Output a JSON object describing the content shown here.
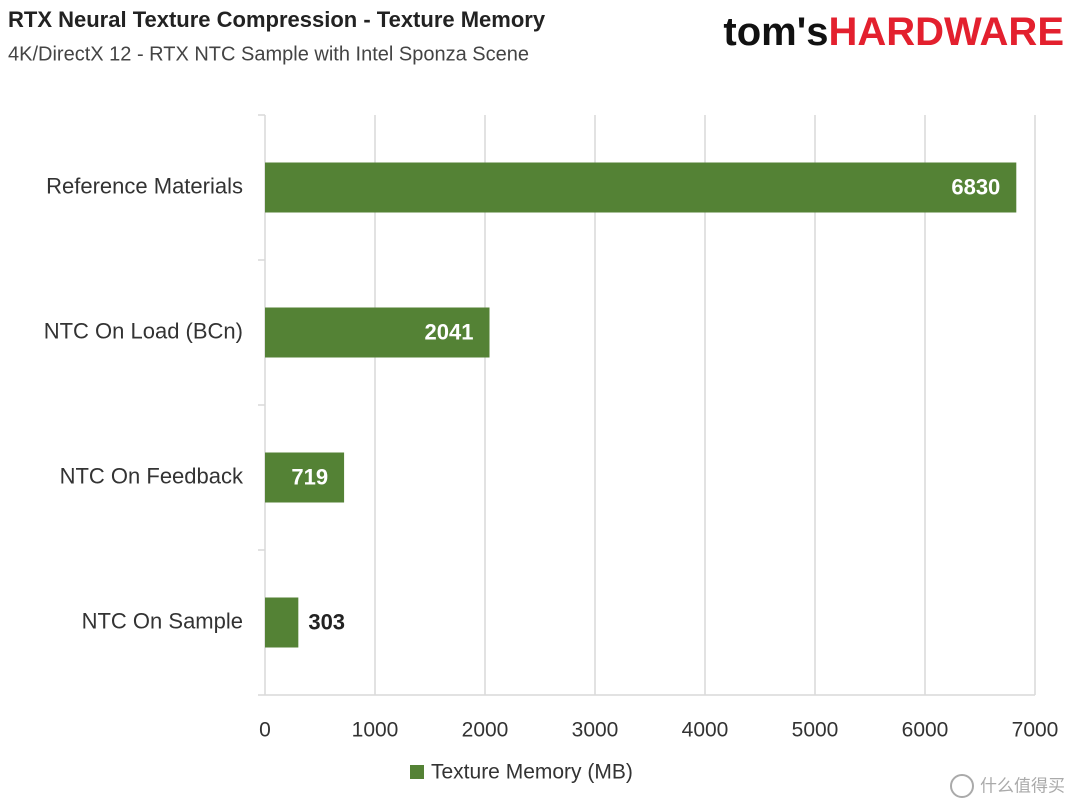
{
  "chart_data": {
    "type": "bar",
    "orientation": "horizontal",
    "title": "RTX Neural Texture Compression - Texture Memory",
    "subtitle": "4K/DirectX 12 - RTX NTC Sample with Intel Sponza Scene",
    "brand": {
      "prefix": "tom's",
      "name": "HARDWARE"
    },
    "watermark": "什么值得买",
    "categories": [
      "Reference Materials",
      "NTC On Load (BCn)",
      "NTC On Feedback",
      "NTC On Sample"
    ],
    "series": [
      {
        "name": "Texture Memory (MB)",
        "color": "#548235",
        "values": [
          6830,
          2041,
          719,
          303
        ]
      }
    ],
    "xlim": [
      0,
      7000
    ],
    "xticks": [
      0,
      1000,
      2000,
      3000,
      4000,
      5000,
      6000,
      7000
    ],
    "grid": true,
    "legend": "bottom"
  }
}
